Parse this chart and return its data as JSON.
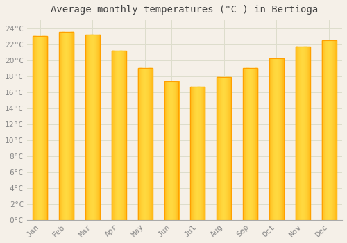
{
  "title": "Average monthly temperatures (°C ) in Bertioga",
  "months": [
    "Jan",
    "Feb",
    "Mar",
    "Apr",
    "May",
    "Jun",
    "Jul",
    "Aug",
    "Sep",
    "Oct",
    "Nov",
    "Dec"
  ],
  "values": [
    23.0,
    23.5,
    23.2,
    21.2,
    19.0,
    17.4,
    16.7,
    17.9,
    19.0,
    20.2,
    21.7,
    22.5
  ],
  "bar_color_left": "#FFA500",
  "bar_color_mid": "#FFD040",
  "bar_color_right": "#FFA500",
  "background_color": "#F5F0E8",
  "grid_color": "#DDDDCC",
  "title_color": "#444444",
  "tick_label_color": "#888888",
  "ylim": [
    0,
    25
  ],
  "ytick_step": 2,
  "title_fontsize": 10,
  "tick_fontsize": 8,
  "bar_width": 0.55
}
